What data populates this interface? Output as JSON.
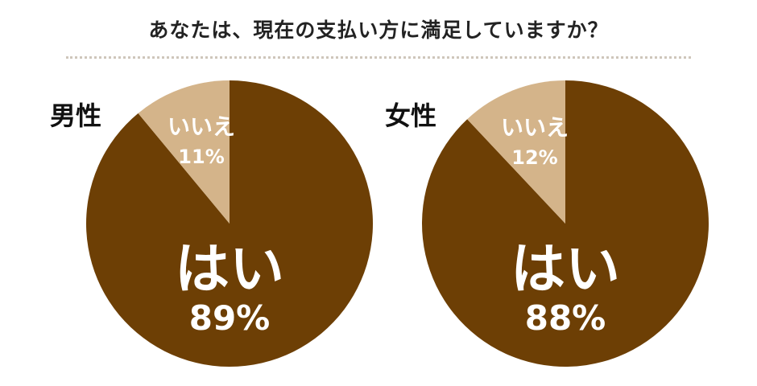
{
  "title": "あなたは、現在の支払い方に満足していますか？",
  "colors": {
    "yes": "#6d3f05",
    "no": "#d4b48a",
    "yes_text": "#ffffff",
    "no_text": "#ffffff",
    "panel_label": "#111111"
  },
  "chart_data": [
    {
      "type": "pie",
      "title": "男性",
      "slices": [
        {
          "label": "はい",
          "value": 89,
          "value_text": "89%"
        },
        {
          "label": "いいえ",
          "value": 11,
          "value_text": "11%"
        }
      ]
    },
    {
      "type": "pie",
      "title": "女性",
      "slices": [
        {
          "label": "はい",
          "value": 88,
          "value_text": "88%"
        },
        {
          "label": "いいえ",
          "value": 12,
          "value_text": "12%"
        }
      ]
    }
  ]
}
